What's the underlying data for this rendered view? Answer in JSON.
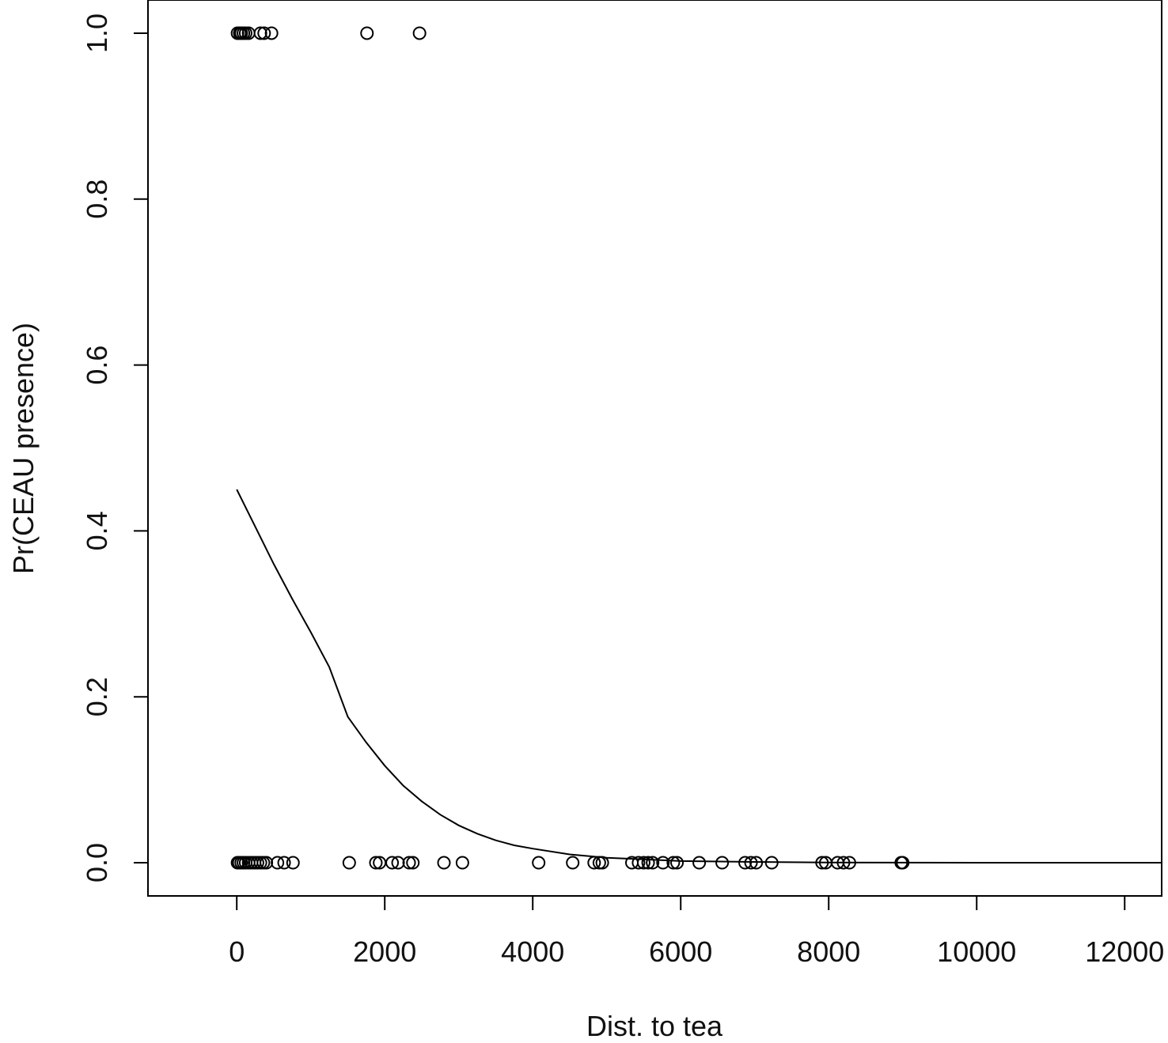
{
  "chart_data": {
    "type": "scatter",
    "title": "",
    "xlabel": "Dist. to tea",
    "ylabel": "Pr(CEAU presence)",
    "xlim": [
      -1200,
      12500
    ],
    "ylim": [
      -0.04,
      1.04
    ],
    "x_ticks": [
      0,
      2000,
      4000,
      6000,
      8000,
      10000,
      12000
    ],
    "x_tick_labels": [
      "0",
      "2000",
      "4000",
      "6000",
      "8000",
      "10000",
      "12000"
    ],
    "y_ticks": [
      0.0,
      0.2,
      0.4,
      0.6,
      0.8,
      1.0
    ],
    "y_tick_labels": [
      "0.0",
      "0.2",
      "0.4",
      "0.6",
      "0.8",
      "1.0"
    ],
    "grid": false,
    "series": [
      {
        "kind": "points",
        "points": [
          {
            "x": 10,
            "y": 1
          },
          {
            "x": 40,
            "y": 1
          },
          {
            "x": 60,
            "y": 1
          },
          {
            "x": 90,
            "y": 1
          },
          {
            "x": 120,
            "y": 1
          },
          {
            "x": 160,
            "y": 1
          },
          {
            "x": 320,
            "y": 1
          },
          {
            "x": 370,
            "y": 1
          },
          {
            "x": 470,
            "y": 1
          },
          {
            "x": 1760,
            "y": 1
          },
          {
            "x": 2470,
            "y": 1
          },
          {
            "x": 10,
            "y": 0
          },
          {
            "x": 30,
            "y": 0
          },
          {
            "x": 60,
            "y": 0
          },
          {
            "x": 90,
            "y": 0
          },
          {
            "x": 120,
            "y": 0
          },
          {
            "x": 160,
            "y": 0
          },
          {
            "x": 200,
            "y": 0
          },
          {
            "x": 240,
            "y": 0
          },
          {
            "x": 280,
            "y": 0
          },
          {
            "x": 320,
            "y": 0
          },
          {
            "x": 360,
            "y": 0
          },
          {
            "x": 400,
            "y": 0
          },
          {
            "x": 550,
            "y": 0
          },
          {
            "x": 640,
            "y": 0
          },
          {
            "x": 760,
            "y": 0
          },
          {
            "x": 1520,
            "y": 0
          },
          {
            "x": 1880,
            "y": 0
          },
          {
            "x": 1930,
            "y": 0
          },
          {
            "x": 2100,
            "y": 0
          },
          {
            "x": 2180,
            "y": 0
          },
          {
            "x": 2330,
            "y": 0
          },
          {
            "x": 2380,
            "y": 0
          },
          {
            "x": 2800,
            "y": 0
          },
          {
            "x": 3050,
            "y": 0
          },
          {
            "x": 4080,
            "y": 0
          },
          {
            "x": 4540,
            "y": 0
          },
          {
            "x": 4830,
            "y": 0
          },
          {
            "x": 4900,
            "y": 0
          },
          {
            "x": 4940,
            "y": 0
          },
          {
            "x": 5340,
            "y": 0
          },
          {
            "x": 5430,
            "y": 0
          },
          {
            "x": 5500,
            "y": 0
          },
          {
            "x": 5560,
            "y": 0
          },
          {
            "x": 5620,
            "y": 0
          },
          {
            "x": 5760,
            "y": 0
          },
          {
            "x": 5900,
            "y": 0
          },
          {
            "x": 5950,
            "y": 0
          },
          {
            "x": 6250,
            "y": 0
          },
          {
            "x": 6560,
            "y": 0
          },
          {
            "x": 6870,
            "y": 0
          },
          {
            "x": 6950,
            "y": 0
          },
          {
            "x": 7020,
            "y": 0
          },
          {
            "x": 7230,
            "y": 0
          },
          {
            "x": 7910,
            "y": 0
          },
          {
            "x": 7960,
            "y": 0
          },
          {
            "x": 8120,
            "y": 0
          },
          {
            "x": 8200,
            "y": 0
          },
          {
            "x": 8280,
            "y": 0
          },
          {
            "x": 8980,
            "y": 0
          },
          {
            "x": 9000,
            "y": 0
          }
        ]
      },
      {
        "kind": "curve",
        "points": [
          {
            "x": 0,
            "y": 0.45
          },
          {
            "x": 250,
            "y": 0.405
          },
          {
            "x": 500,
            "y": 0.36
          },
          {
            "x": 750,
            "y": 0.318
          },
          {
            "x": 1000,
            "y": 0.278
          },
          {
            "x": 1250,
            "y": 0.236
          },
          {
            "x": 1500,
            "y": 0.176
          },
          {
            "x": 1750,
            "y": 0.145
          },
          {
            "x": 2000,
            "y": 0.117
          },
          {
            "x": 2250,
            "y": 0.093
          },
          {
            "x": 2500,
            "y": 0.074
          },
          {
            "x": 2750,
            "y": 0.058
          },
          {
            "x": 3000,
            "y": 0.045
          },
          {
            "x": 3250,
            "y": 0.035
          },
          {
            "x": 3500,
            "y": 0.027
          },
          {
            "x": 3750,
            "y": 0.021
          },
          {
            "x": 4000,
            "y": 0.017
          },
          {
            "x": 4500,
            "y": 0.01
          },
          {
            "x": 5000,
            "y": 0.006
          },
          {
            "x": 5500,
            "y": 0.004
          },
          {
            "x": 6000,
            "y": 0.002
          },
          {
            "x": 7000,
            "y": 0.001
          },
          {
            "x": 8000,
            "y": 0.0003
          },
          {
            "x": 9000,
            "y": 0.0001
          },
          {
            "x": 10000,
            "y": 0
          },
          {
            "x": 12500,
            "y": 0
          }
        ]
      }
    ]
  }
}
